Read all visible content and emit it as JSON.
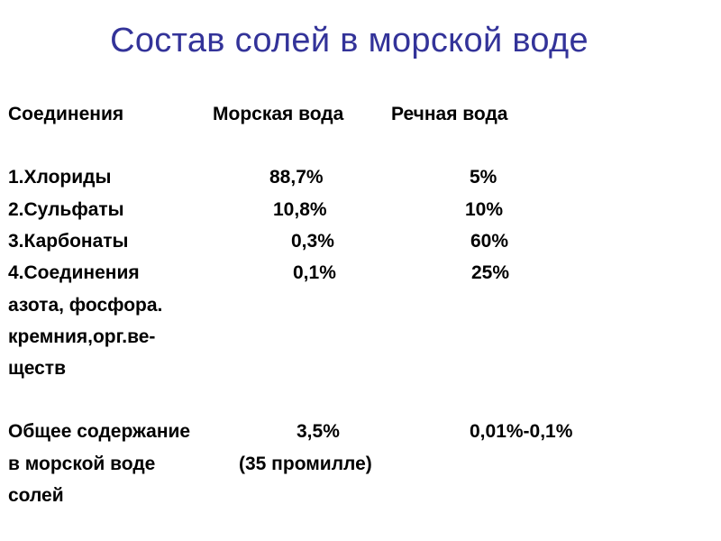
{
  "slide": {
    "title": "Состав солей в морской воде",
    "headers": {
      "compound": "Соединения",
      "sea": "Морская вода",
      "river": "Речная вода"
    },
    "rows": [
      {
        "compound": "1.Хлориды",
        "sea": "88,7%",
        "river": "5%"
      },
      {
        "compound": "2.Сульфаты",
        "sea": "10,8%",
        "river": "10%"
      },
      {
        "compound": "3.Карбонаты",
        "sea": "0,3%",
        "river": "60%"
      },
      {
        "compound_lines": [
          "4.Соединения",
          "азота, фосфора.",
          "кремния,орг.ве-",
          "ществ"
        ],
        "sea": "0,1%",
        "river": "25%"
      }
    ],
    "total": {
      "label_lines": [
        "Общее содержание",
        "в морской воде",
        "солей"
      ],
      "sea": "3,5%",
      "sea_note": "(35 промилле)",
      "river": "0,01%-0,1%"
    }
  }
}
